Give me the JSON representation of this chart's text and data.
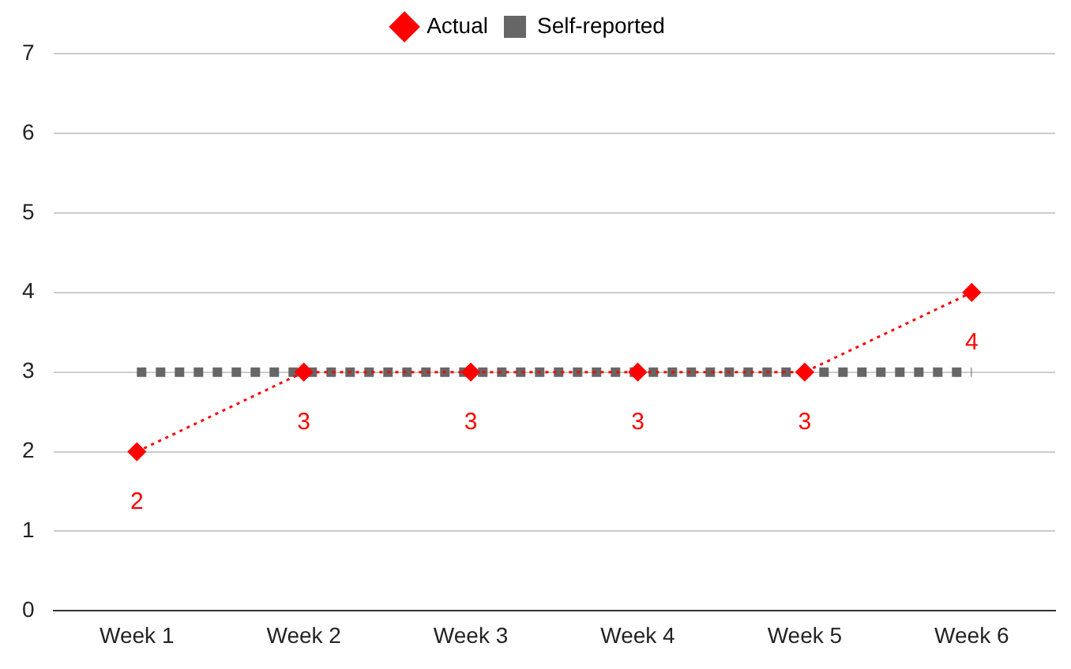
{
  "chart_data": {
    "type": "line",
    "categories": [
      "Week 1",
      "Week 2",
      "Week 3",
      "Week 4",
      "Week 5",
      "Week 6"
    ],
    "series": [
      {
        "name": "Actual",
        "color": "#ff0000",
        "values": [
          2,
          3,
          3,
          3,
          3,
          4
        ],
        "value_labels": [
          "2",
          "3",
          "3",
          "3",
          "3",
          "4"
        ],
        "marker": "diamond",
        "line_style": "dotted"
      },
      {
        "name": "Self-reported",
        "color": "#666666",
        "values": [
          3,
          3,
          3,
          3,
          3,
          3
        ],
        "marker": "none",
        "line_style": "dotted"
      }
    ],
    "ylim": [
      0,
      7
    ],
    "yticks": [
      0,
      1,
      2,
      3,
      4,
      5,
      6,
      7
    ],
    "grid": "y",
    "legend": "top"
  }
}
